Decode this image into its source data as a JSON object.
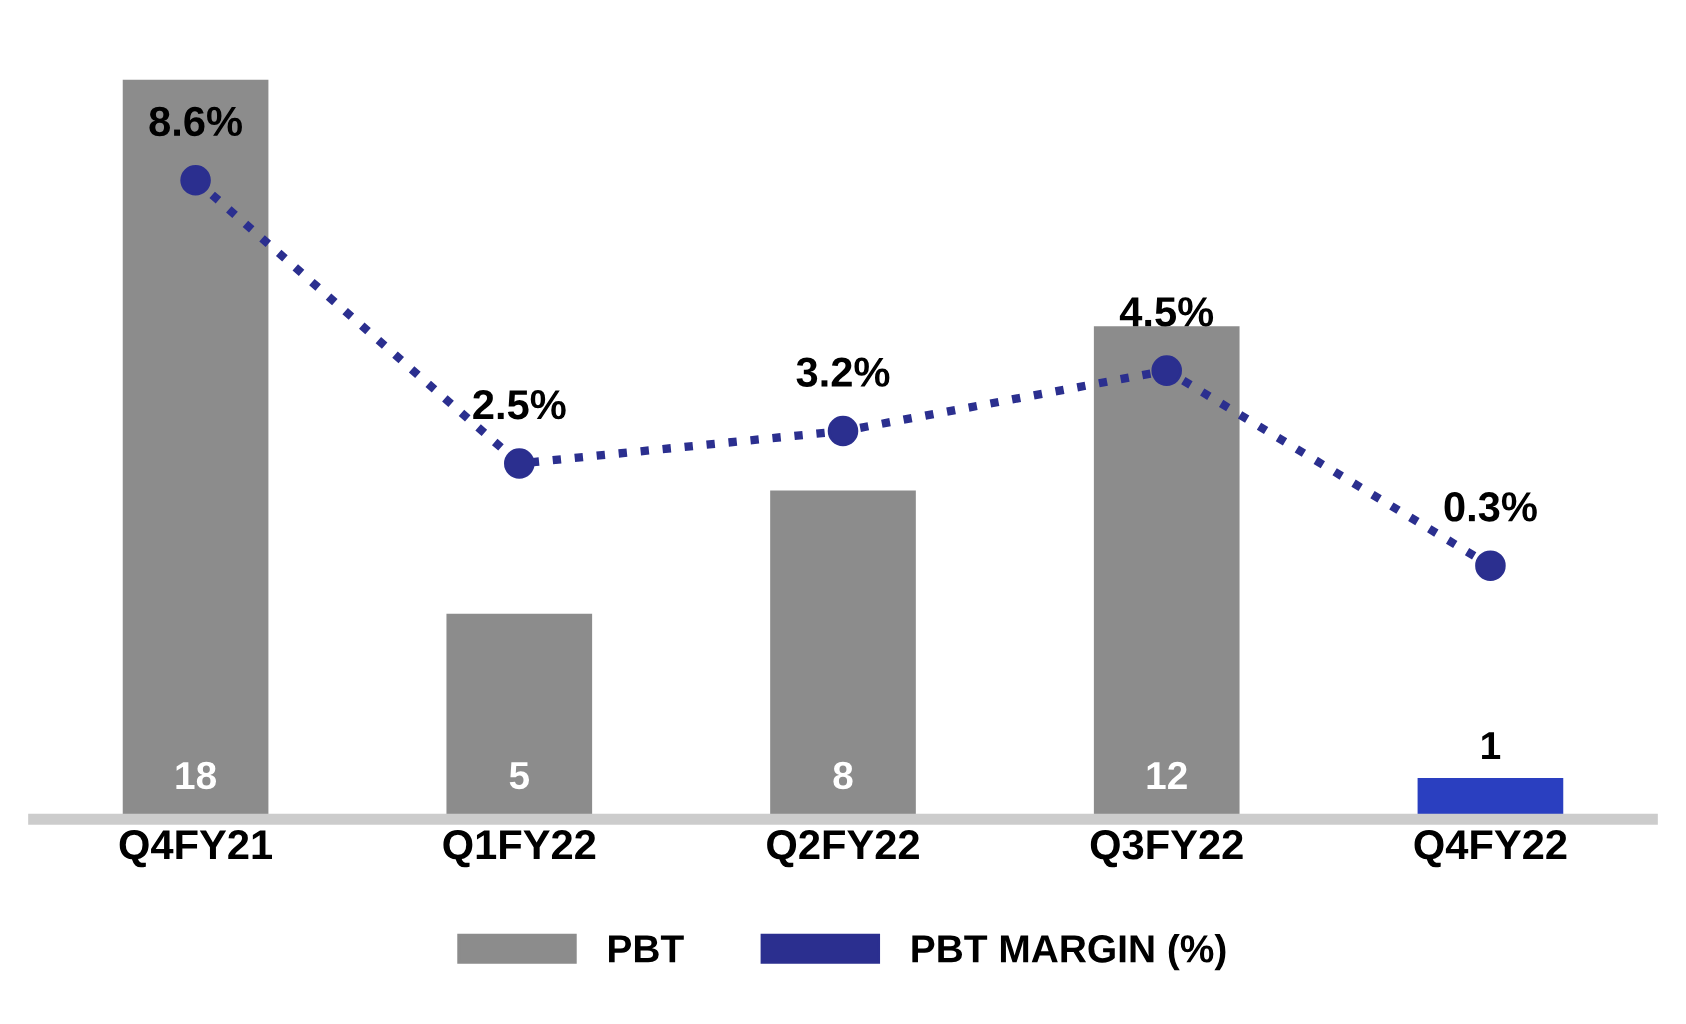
{
  "chart_data": {
    "type": "bar",
    "categories": [
      "Q4FY21",
      "Q1FY22",
      "Q2FY22",
      "Q3FY22",
      "Q4FY22"
    ],
    "series": [
      {
        "name": "PBT",
        "color": "#8c8c8c",
        "colors": [
          "#8c8c8c",
          "#8c8c8c",
          "#8c8c8c",
          "#8c8c8c",
          "#2a3fc0"
        ],
        "values": [
          18,
          5,
          8,
          12,
          1
        ],
        "value_labels": [
          "18",
          "5",
          "8",
          "12",
          "1"
        ]
      },
      {
        "name": "PBT MARGIN (%)",
        "type": "line",
        "axis": "y2",
        "color": "#2b2f8f",
        "marker": "circle",
        "line_style": "dotted",
        "values": [
          8.6,
          2.5,
          3.2,
          4.5,
          0.3
        ],
        "value_labels": [
          "8.6%",
          "2.5%",
          "3.2%",
          "4.5%",
          "0.3%"
        ]
      }
    ],
    "legend": "bottom",
    "grid": false,
    "tick_labels": "x"
  }
}
